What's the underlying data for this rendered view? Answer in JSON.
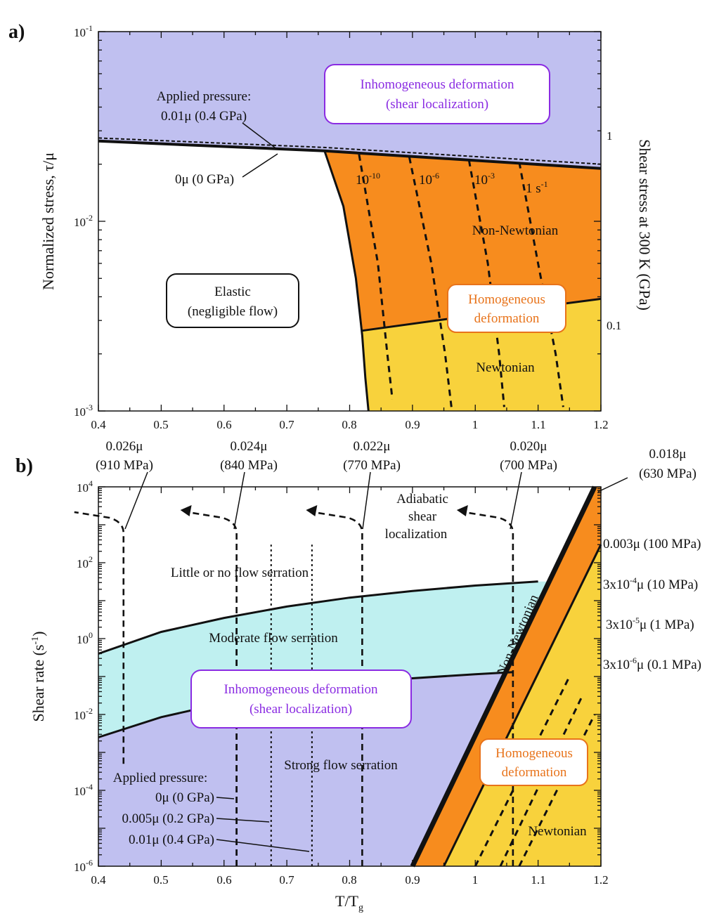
{
  "chart_data": [
    {
      "type": "area",
      "panel_label": "a)",
      "xlabel": "",
      "ylabel": "Normalized stress, τ/μ",
      "y2label": "Shear stress at 300 K  (GPa)",
      "xlim": [
        0.4,
        1.2
      ],
      "ylim": [
        0.001,
        0.1
      ],
      "yscale": "log",
      "x_ticks": [
        "0.4",
        "0.5",
        "0.6",
        "0.7",
        "0.8",
        "0.9",
        "1",
        "1.1",
        "1.2"
      ],
      "y_ticks": [
        {
          "value": 0.1,
          "mant": "10",
          "exp": "-1"
        },
        {
          "value": 0.01,
          "mant": "10",
          "exp": "-2"
        },
        {
          "value": 0.001,
          "mant": "10",
          "exp": "-3"
        }
      ],
      "y2_ticks": [
        {
          "value": 0.025,
          "label": "1"
        },
        {
          "value": 0.0025,
          "label": "0.1"
        }
      ],
      "colors": {
        "inhomogeneous": "#c0c0f0",
        "elastic": "#ffffff",
        "non_newtonian": "#f78c1e",
        "newtonian": "#f8d23c",
        "inhom_text": "#8a2be2",
        "hom_text": "#e8731a"
      },
      "boundaries": {
        "yield_0gpa": {
          "x": [
            0.4,
            0.76,
            1.2
          ],
          "y": [
            0.0265,
            0.0235,
            0.019
          ]
        },
        "yield_0p4gpa": {
          "x": [
            0.4,
            0.76,
            1.2
          ],
          "y": [
            0.0275,
            0.0245,
            0.02
          ]
        },
        "glass_transition": {
          "x": [
            0.76,
            0.79,
            0.81,
            0.82,
            0.825,
            0.83
          ],
          "y": [
            0.0235,
            0.012,
            0.005,
            0.0025,
            0.0015,
            0.001
          ]
        },
        "newtonian_transition": {
          "x": [
            0.82,
            1.0,
            1.2
          ],
          "y": [
            0.00265,
            0.0032,
            0.0039
          ]
        }
      },
      "series": [
        {
          "name": "10⁻¹⁰",
          "x": [
            0.815,
            0.845,
            0.86,
            0.868
          ],
          "y": [
            0.0225,
            0.006,
            0.002,
            0.00115
          ]
        },
        {
          "name": "10⁻⁶",
          "x": [
            0.895,
            0.93,
            0.952,
            0.962
          ],
          "y": [
            0.0218,
            0.006,
            0.002,
            0.00105
          ]
        },
        {
          "name": "10⁻³",
          "x": [
            0.99,
            1.02,
            1.038,
            1.046
          ],
          "y": [
            0.021,
            0.006,
            0.002,
            0.00105
          ]
        },
        {
          "name": "1 s⁻¹",
          "x": [
            1.07,
            1.1,
            1.128,
            1.14
          ],
          "y": [
            0.0205,
            0.006,
            0.002,
            0.00105
          ]
        }
      ],
      "series_labels": [
        {
          "mant": "10",
          "exp": "-10",
          "suffix": ""
        },
        {
          "mant": "10",
          "exp": "-6",
          "suffix": ""
        },
        {
          "mant": "10",
          "exp": "-3",
          "suffix": ""
        },
        {
          "mant": "1 s",
          "exp": "-1",
          "suffix": ""
        }
      ],
      "labels": {
        "inhomogeneous_1": "Inhomogeneous deformation",
        "inhomogeneous_2": "(shear localization)",
        "applied_pressure": "Applied pressure:",
        "pressure_04": "0.01μ (0.4 GPa)",
        "pressure_0": "0μ (0 GPa)",
        "elastic_1": "Elastic",
        "elastic_2": "(negligible flow)",
        "non_newtonian": "Non-Newtonian",
        "homogeneous_1": "Homogeneous",
        "homogeneous_2": "deformation",
        "newtonian": "Newtonian"
      }
    },
    {
      "type": "area",
      "panel_label": "b)",
      "xlabel_main": "T/T",
      "xlabel_sub": "g",
      "ylabel_main": "Shear rate (s",
      "ylabel_exp": "-1",
      "ylabel_end": ")",
      "xlim": [
        0.4,
        1.2
      ],
      "ylim": [
        1e-06,
        10000.0
      ],
      "yscale": "log",
      "x_ticks": [
        "0.4",
        "0.5",
        "0.6",
        "0.7",
        "0.8",
        "0.9",
        "1",
        "1.1",
        "1.2"
      ],
      "y_ticks": [
        {
          "value": 10000.0,
          "mant": "10",
          "exp": "4"
        },
        {
          "value": 100,
          "mant": "10",
          "exp": "2"
        },
        {
          "value": 1,
          "mant": "10",
          "exp": "0"
        },
        {
          "value": 0.01,
          "mant": "10",
          "exp": "-2"
        },
        {
          "value": 0.0001,
          "mant": "10",
          "exp": "-4"
        },
        {
          "value": 1e-06,
          "mant": "10",
          "exp": "-6"
        }
      ],
      "colors": {
        "strong_serration": "#c0c0f0",
        "moderate_serration": "#bff0f0",
        "non_newtonian": "#f78c1e",
        "newtonian": "#f8d23c",
        "inhom_text": "#8a2be2",
        "hom_text": "#e8731a"
      },
      "boundaries": {
        "moderate_top": {
          "x": [
            0.4,
            0.5,
            0.6,
            0.7,
            0.8,
            0.9,
            1.0,
            1.1
          ],
          "y": [
            0.4,
            1.5,
            3.5,
            7,
            12,
            18,
            25,
            32
          ]
        },
        "moderate_bottom": {
          "x": [
            0.4,
            0.5,
            0.6,
            0.7,
            0.8,
            0.9,
            1.0,
            1.06
          ],
          "y": [
            0.0025,
            0.0085,
            0.02,
            0.04,
            0.065,
            0.09,
            0.115,
            0.13
          ]
        },
        "glass_transition": {
          "x": [
            0.9,
            1.19
          ],
          "y": [
            1e-06,
            10000
          ]
        },
        "newtonian_transition": {
          "x": [
            0.95,
            1.2
          ],
          "y": [
            1e-06,
            300
          ]
        },
        "homogeneous_iso": [
          {
            "x": [
              1.0,
              1.15
            ],
            "y": [
              1e-06,
              0.1
            ]
          },
          {
            "x": [
              1.04,
              1.17
            ],
            "y": [
              1e-06,
              0.03
            ]
          },
          {
            "x": [
              1.07,
              1.19
            ],
            "y": [
              1e-06,
              0.01
            ]
          }
        ],
        "stress_iso": [
          {
            "x": 0.44,
            "y_top": 600
          },
          {
            "x": 0.62,
            "y_top": 600
          },
          {
            "x": 0.82,
            "y_top": 600
          },
          {
            "x": 1.06,
            "y_top": 600
          }
        ],
        "pressure_lines": [
          0.62,
          0.675,
          0.74
        ]
      },
      "labels": {
        "stress_026": "0.026μ",
        "stress_026_mpa": "(910 MPa)",
        "stress_024": "0.024μ",
        "stress_024_mpa": "(840 MPa)",
        "stress_022": "0.022μ",
        "stress_022_mpa": "(770 MPa)",
        "stress_020": "0.020μ",
        "stress_020_mpa": "(700 MPa)",
        "stress_018": "0.018μ",
        "stress_018_mpa": "(630 MPa)",
        "adiabatic_1": "Adiabatic",
        "adiabatic_2": "shear",
        "adiabatic_3": "localization",
        "little": "Little or no flow serration",
        "moderate": "Moderate flow serration",
        "inhomogeneous_1": "Inhomogeneous deformation",
        "inhomogeneous_2": "(shear localization)",
        "strong": "Strong flow serration",
        "applied_pressure": "Applied pressure:",
        "p0": "0μ (0 GPa)",
        "p02": "0.005μ (0.2 GPa)",
        "p04": "0.01μ (0.4 GPa)",
        "non_newtonian": "Non-Newtonian",
        "homogeneous_1": "Homogeneous",
        "homogeneous_2": "deformation",
        "newtonian": "Newtonian",
        "r1": "0.003μ (100 MPa)",
        "r2_mant": "3x10",
        "r2_exp": "-4",
        "r2_end": "μ (10 MPa)",
        "r3_mant": "3x10",
        "r3_exp": "-5",
        "r3_end": "μ (1 MPa)",
        "r4_mant": "3x10",
        "r4_exp": "-6",
        "r4_end": "μ (0.1 MPa)"
      }
    }
  ]
}
